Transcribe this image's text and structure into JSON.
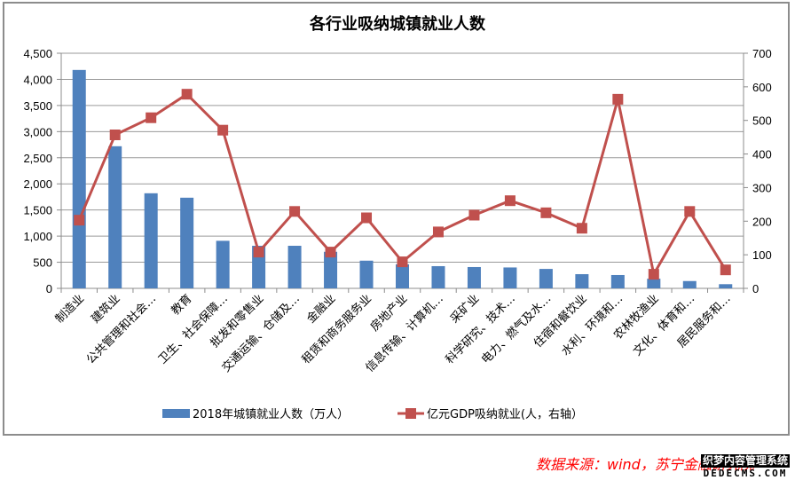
{
  "chart_data": {
    "type": "bar+line",
    "title": "各行业吸纳城镇就业人数",
    "categories": [
      "制造业",
      "建筑业",
      "公共管理和社会…",
      "教育",
      "卫生、社会保障…",
      "批发和零售业",
      "交通运输、仓储及…",
      "金融业",
      "租赁和商务服务业",
      "房地产业",
      "信息传输、计算机…",
      "采矿业",
      "科学研究、技术…",
      "电力、燃气及水…",
      "住宿和餐饮业",
      "水利、环境和…",
      "农林牧渔业",
      "文化、体育和…",
      "居民服务和…"
    ],
    "series": [
      {
        "name": "2018年城镇就业人数（万人）",
        "type": "bar",
        "axis": "left",
        "color": "#4f81bd",
        "values": [
          4180,
          2720,
          1820,
          1735,
          910,
          815,
          815,
          700,
          530,
          460,
          425,
          408,
          400,
          372,
          272,
          255,
          185,
          140,
          80
        ]
      },
      {
        "name": "亿元GDP吸纳就业(人，右轴）",
        "type": "line",
        "axis": "right",
        "color": "#c0504d",
        "marker": "square",
        "values": [
          203,
          457,
          508,
          578,
          471,
          108,
          229,
          108,
          210,
          79,
          168,
          218,
          261,
          225,
          179,
          563,
          42,
          229,
          55
        ]
      }
    ],
    "left_axis": {
      "min": 0,
      "max": 4500,
      "step": 500,
      "tick_labels": [
        "0",
        "500",
        "1,000",
        "1,500",
        "2,000",
        "2,500",
        "3,000",
        "3,500",
        "4,000",
        "4,500"
      ]
    },
    "right_axis": {
      "min": 0,
      "max": 700,
      "step": 100,
      "tick_labels": [
        "0",
        "100",
        "200",
        "300",
        "400",
        "500",
        "600",
        "700"
      ]
    },
    "xlabel": "",
    "ylabel": "",
    "grid": true,
    "legend_position": "bottom"
  },
  "source_note": "数据来源：wind，苏宁金融研究院",
  "watermark": {
    "top": "织梦内容管理系统",
    "bottom": "DEDECMS.COM"
  }
}
